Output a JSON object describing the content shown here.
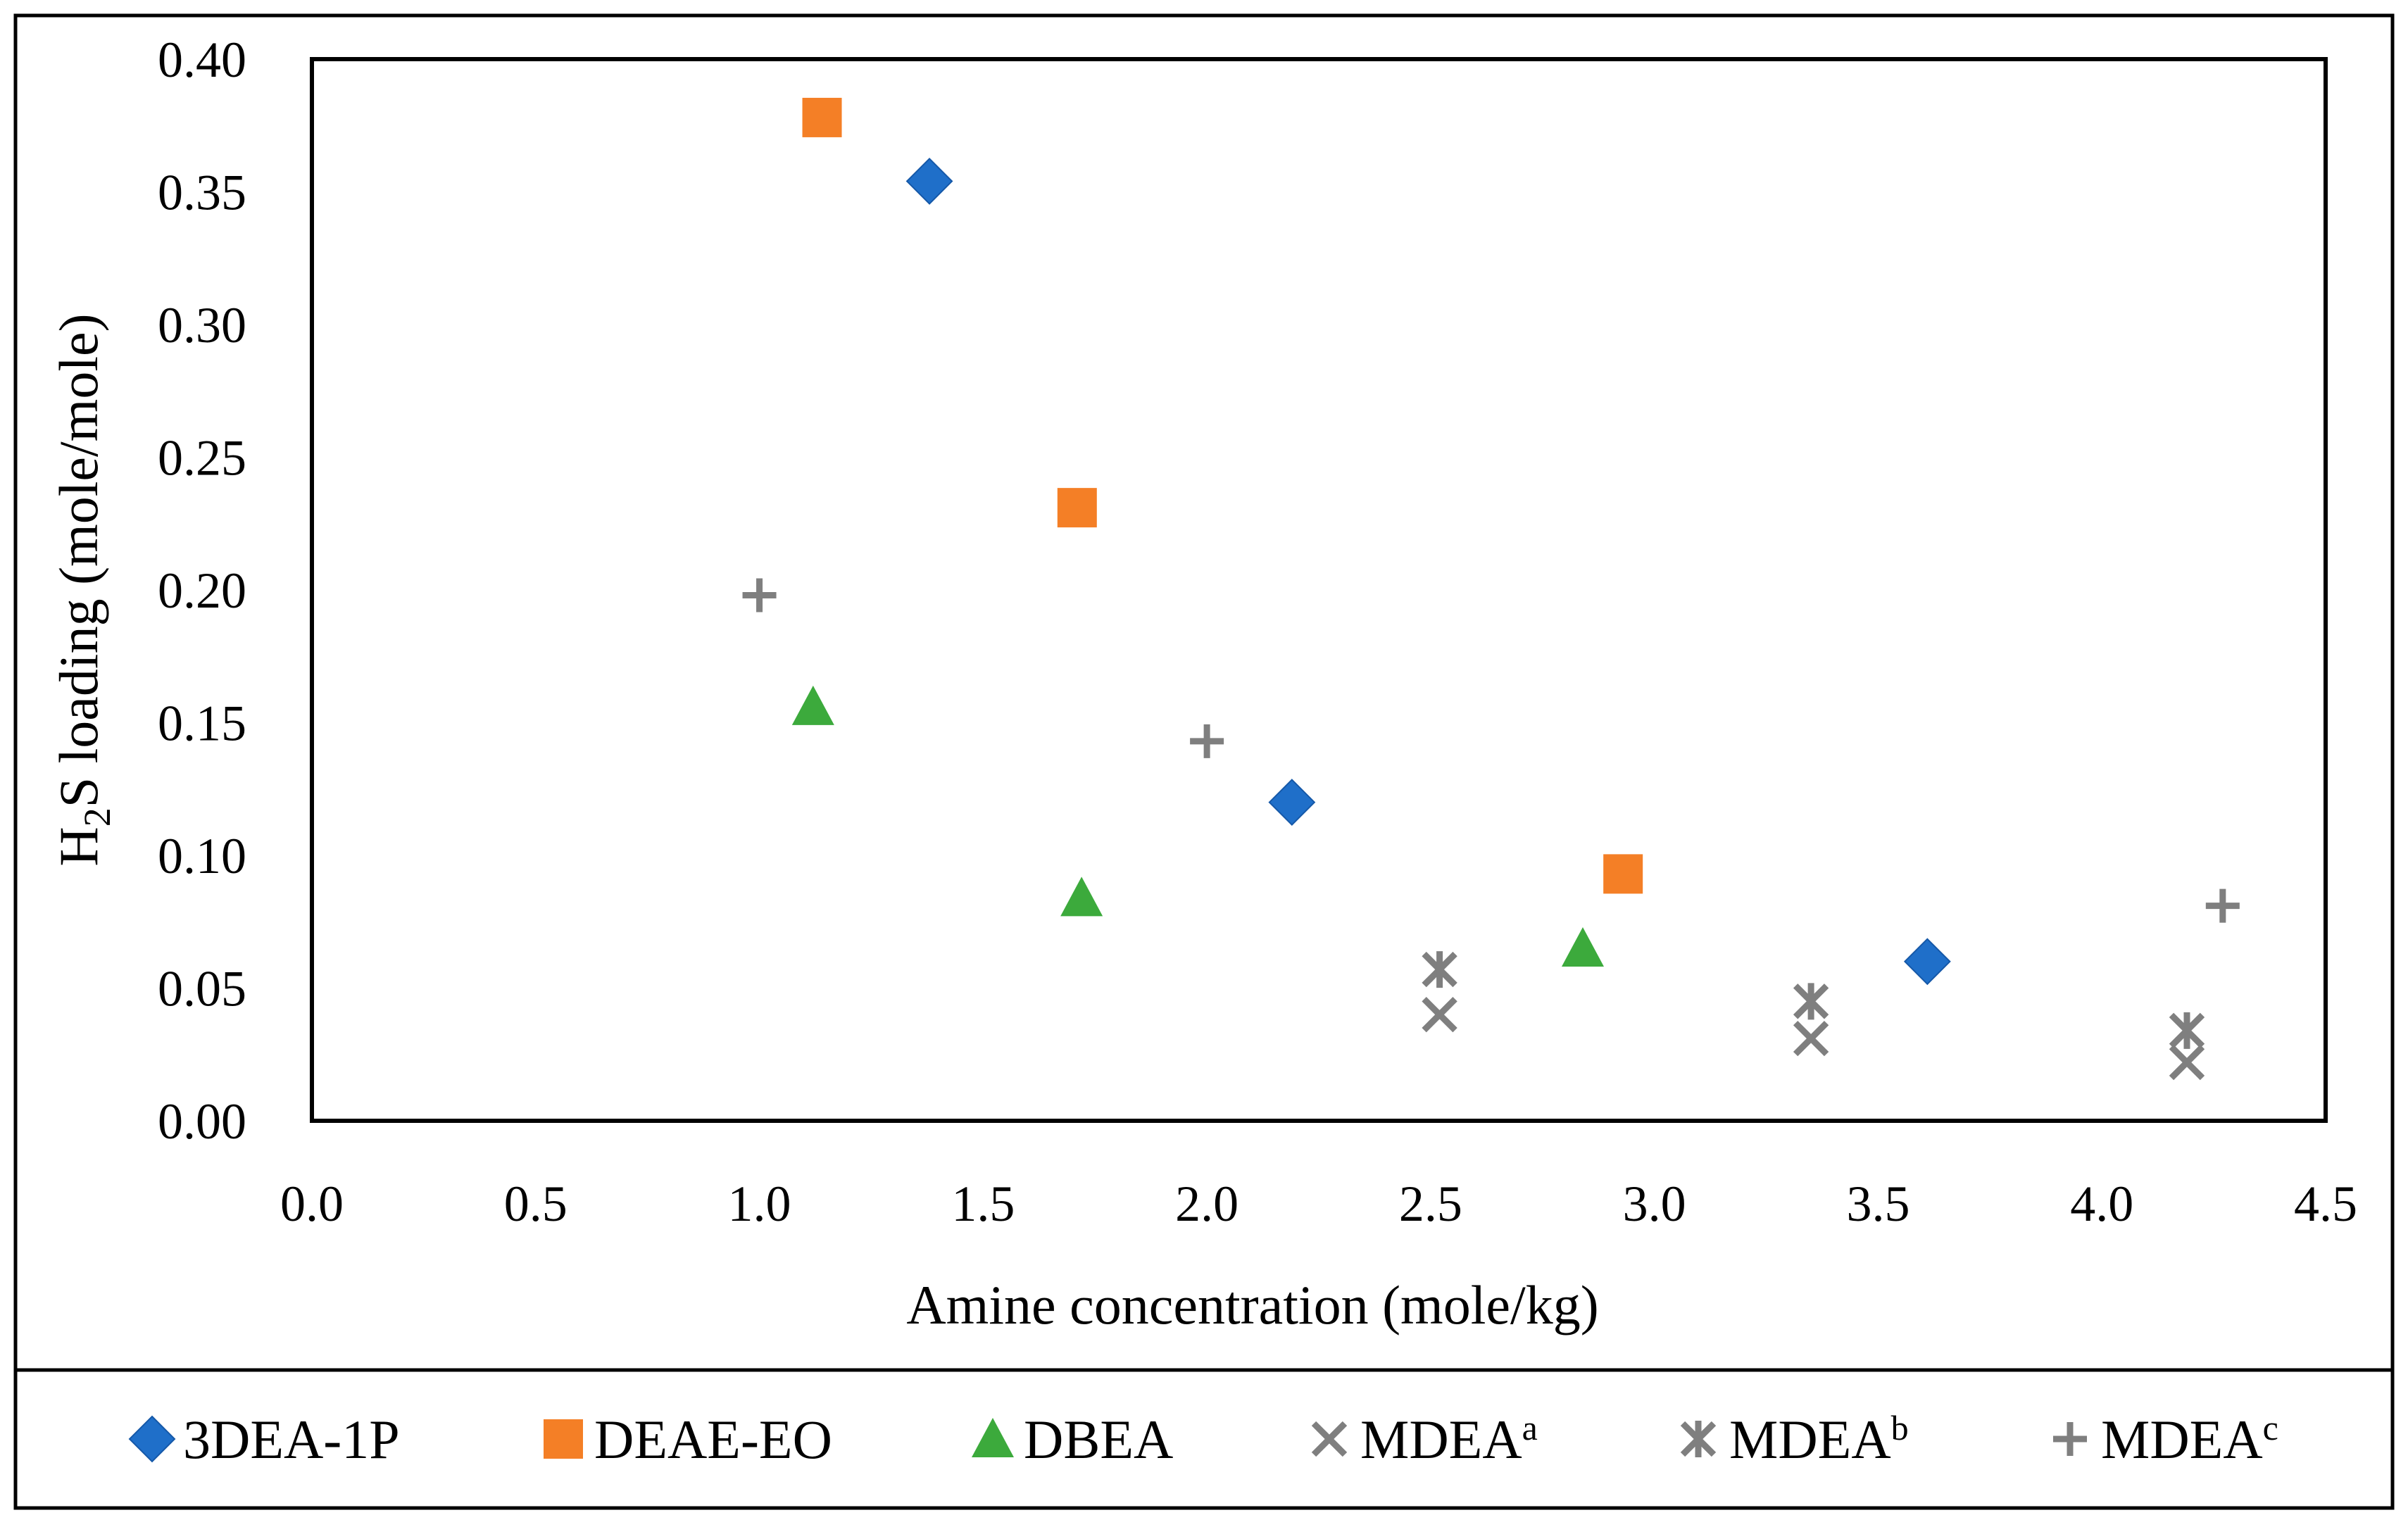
{
  "chart_data": {
    "type": "scatter",
    "title": "",
    "xlabel": "Amine concentration (mole/kg)",
    "ylabel": {
      "prefix": "H",
      "subscript": "2",
      "suffix": "S loading (mole/mole)"
    },
    "xlim": [
      0.0,
      4.5
    ],
    "ylim": [
      0.0,
      0.4
    ],
    "xticks": [
      "0.0",
      "0.5",
      "1.0",
      "1.5",
      "2.0",
      "2.5",
      "3.0",
      "3.5",
      "4.0",
      "4.5"
    ],
    "yticks": [
      "0.00",
      "0.05",
      "0.10",
      "0.15",
      "0.20",
      "0.25",
      "0.30",
      "0.35",
      "0.40"
    ],
    "grid": false,
    "legend_position": "bottom",
    "series": [
      {
        "name": "3DEA-1P",
        "sup": "",
        "marker": "diamond",
        "color": "#1f6fc9",
        "points": [
          [
            1.38,
            0.354
          ],
          [
            2.19,
            0.12
          ],
          [
            3.61,
            0.06
          ]
        ]
      },
      {
        "name": "DEAE-EO",
        "sup": "",
        "marker": "square",
        "color": "#f47f26",
        "points": [
          [
            1.14,
            0.378
          ],
          [
            1.71,
            0.231
          ],
          [
            2.93,
            0.093
          ]
        ]
      },
      {
        "name": "DBEA",
        "sup": "",
        "marker": "triangle",
        "color": "#3caa3c",
        "points": [
          [
            1.12,
            0.156
          ],
          [
            1.72,
            0.084
          ],
          [
            2.84,
            0.065
          ]
        ]
      },
      {
        "name": "MDEA",
        "sup": "a",
        "marker": "x",
        "color": "#7f7f7f",
        "points": [
          [
            2.52,
            0.04
          ],
          [
            3.35,
            0.031
          ],
          [
            4.19,
            0.022
          ]
        ]
      },
      {
        "name": "MDEA",
        "sup": "b",
        "marker": "asterisk",
        "color": "#7f7f7f",
        "points": [
          [
            2.52,
            0.057
          ],
          [
            3.35,
            0.045
          ],
          [
            4.19,
            0.034
          ]
        ]
      },
      {
        "name": "MDEA",
        "sup": "c",
        "marker": "plus",
        "color": "#7f7f7f",
        "points": [
          [
            1.0,
            0.198
          ],
          [
            2.0,
            0.143
          ],
          [
            4.27,
            0.081
          ]
        ]
      }
    ]
  }
}
